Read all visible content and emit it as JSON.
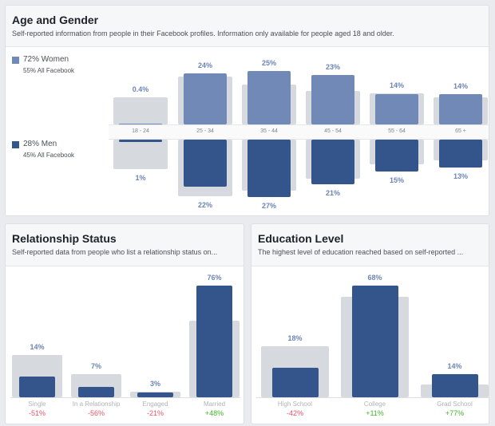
{
  "colors": {
    "women": "#7189b6",
    "men": "#34558b",
    "comparison": "#d6d9de",
    "value_label": "#6d84b4",
    "negative": "#f35369",
    "positive": "#42b72a"
  },
  "age_gender": {
    "title": "Age and Gender",
    "subtitle": "Self-reported information from people in their Facebook profiles. Information only available for people aged 18 and older.",
    "women_label": "72% Women",
    "women_all": "55% All Facebook",
    "men_label": "28% Men",
    "men_all": "45% All Facebook"
  },
  "relationship": {
    "title": "Relationship Status",
    "subtitle": "Self-reported data from people who list a relationship status on..."
  },
  "education": {
    "title": "Education Level",
    "subtitle": "The highest level of education reached based on self-reported ..."
  },
  "chart_data": [
    {
      "type": "bar",
      "title": "Age and Gender",
      "categories": [
        "18 - 24",
        "25 - 34",
        "35 - 44",
        "45 - 54",
        "55 - 64",
        "65 +"
      ],
      "series": [
        {
          "name": "Women",
          "values": [
            0.4,
            24,
            25,
            23,
            14,
            14
          ],
          "labels": [
            "0.4%",
            "24%",
            "25%",
            "23%",
            "14%",
            "14%"
          ]
        },
        {
          "name": "Men",
          "values": [
            1,
            22,
            27,
            21,
            15,
            13
          ],
          "labels": [
            "1%",
            "22%",
            "27%",
            "21%",
            "15%",
            "13%"
          ]
        }
      ],
      "comparison_all_facebook_estimated": {
        "women": [
          12.7,
          22.4,
          18.7,
          15.7,
          14.6,
          12.7
        ],
        "men": [
          13.8,
          26.5,
          23.9,
          18.3,
          11.6,
          9.7
        ]
      }
    },
    {
      "type": "bar",
      "title": "Relationship Status",
      "categories": [
        "Single",
        "In a Relationship",
        "Engaged",
        "Married"
      ],
      "values": [
        14,
        7,
        3,
        76
      ],
      "labels": [
        "14%",
        "7%",
        "3%",
        "76%"
      ],
      "changes": [
        "-51%",
        "-56%",
        "-21%",
        "+48%"
      ],
      "comparison_estimated": [
        29,
        16,
        4,
        52
      ]
    },
    {
      "type": "bar",
      "title": "Education Level",
      "categories": [
        "High School",
        "College",
        "Grad School"
      ],
      "values": [
        18,
        68,
        14
      ],
      "labels": [
        "18%",
        "68%",
        "14%"
      ],
      "changes": [
        "-42%",
        "+11%",
        "+77%"
      ],
      "comparison_estimated": [
        31,
        61,
        8
      ]
    }
  ]
}
